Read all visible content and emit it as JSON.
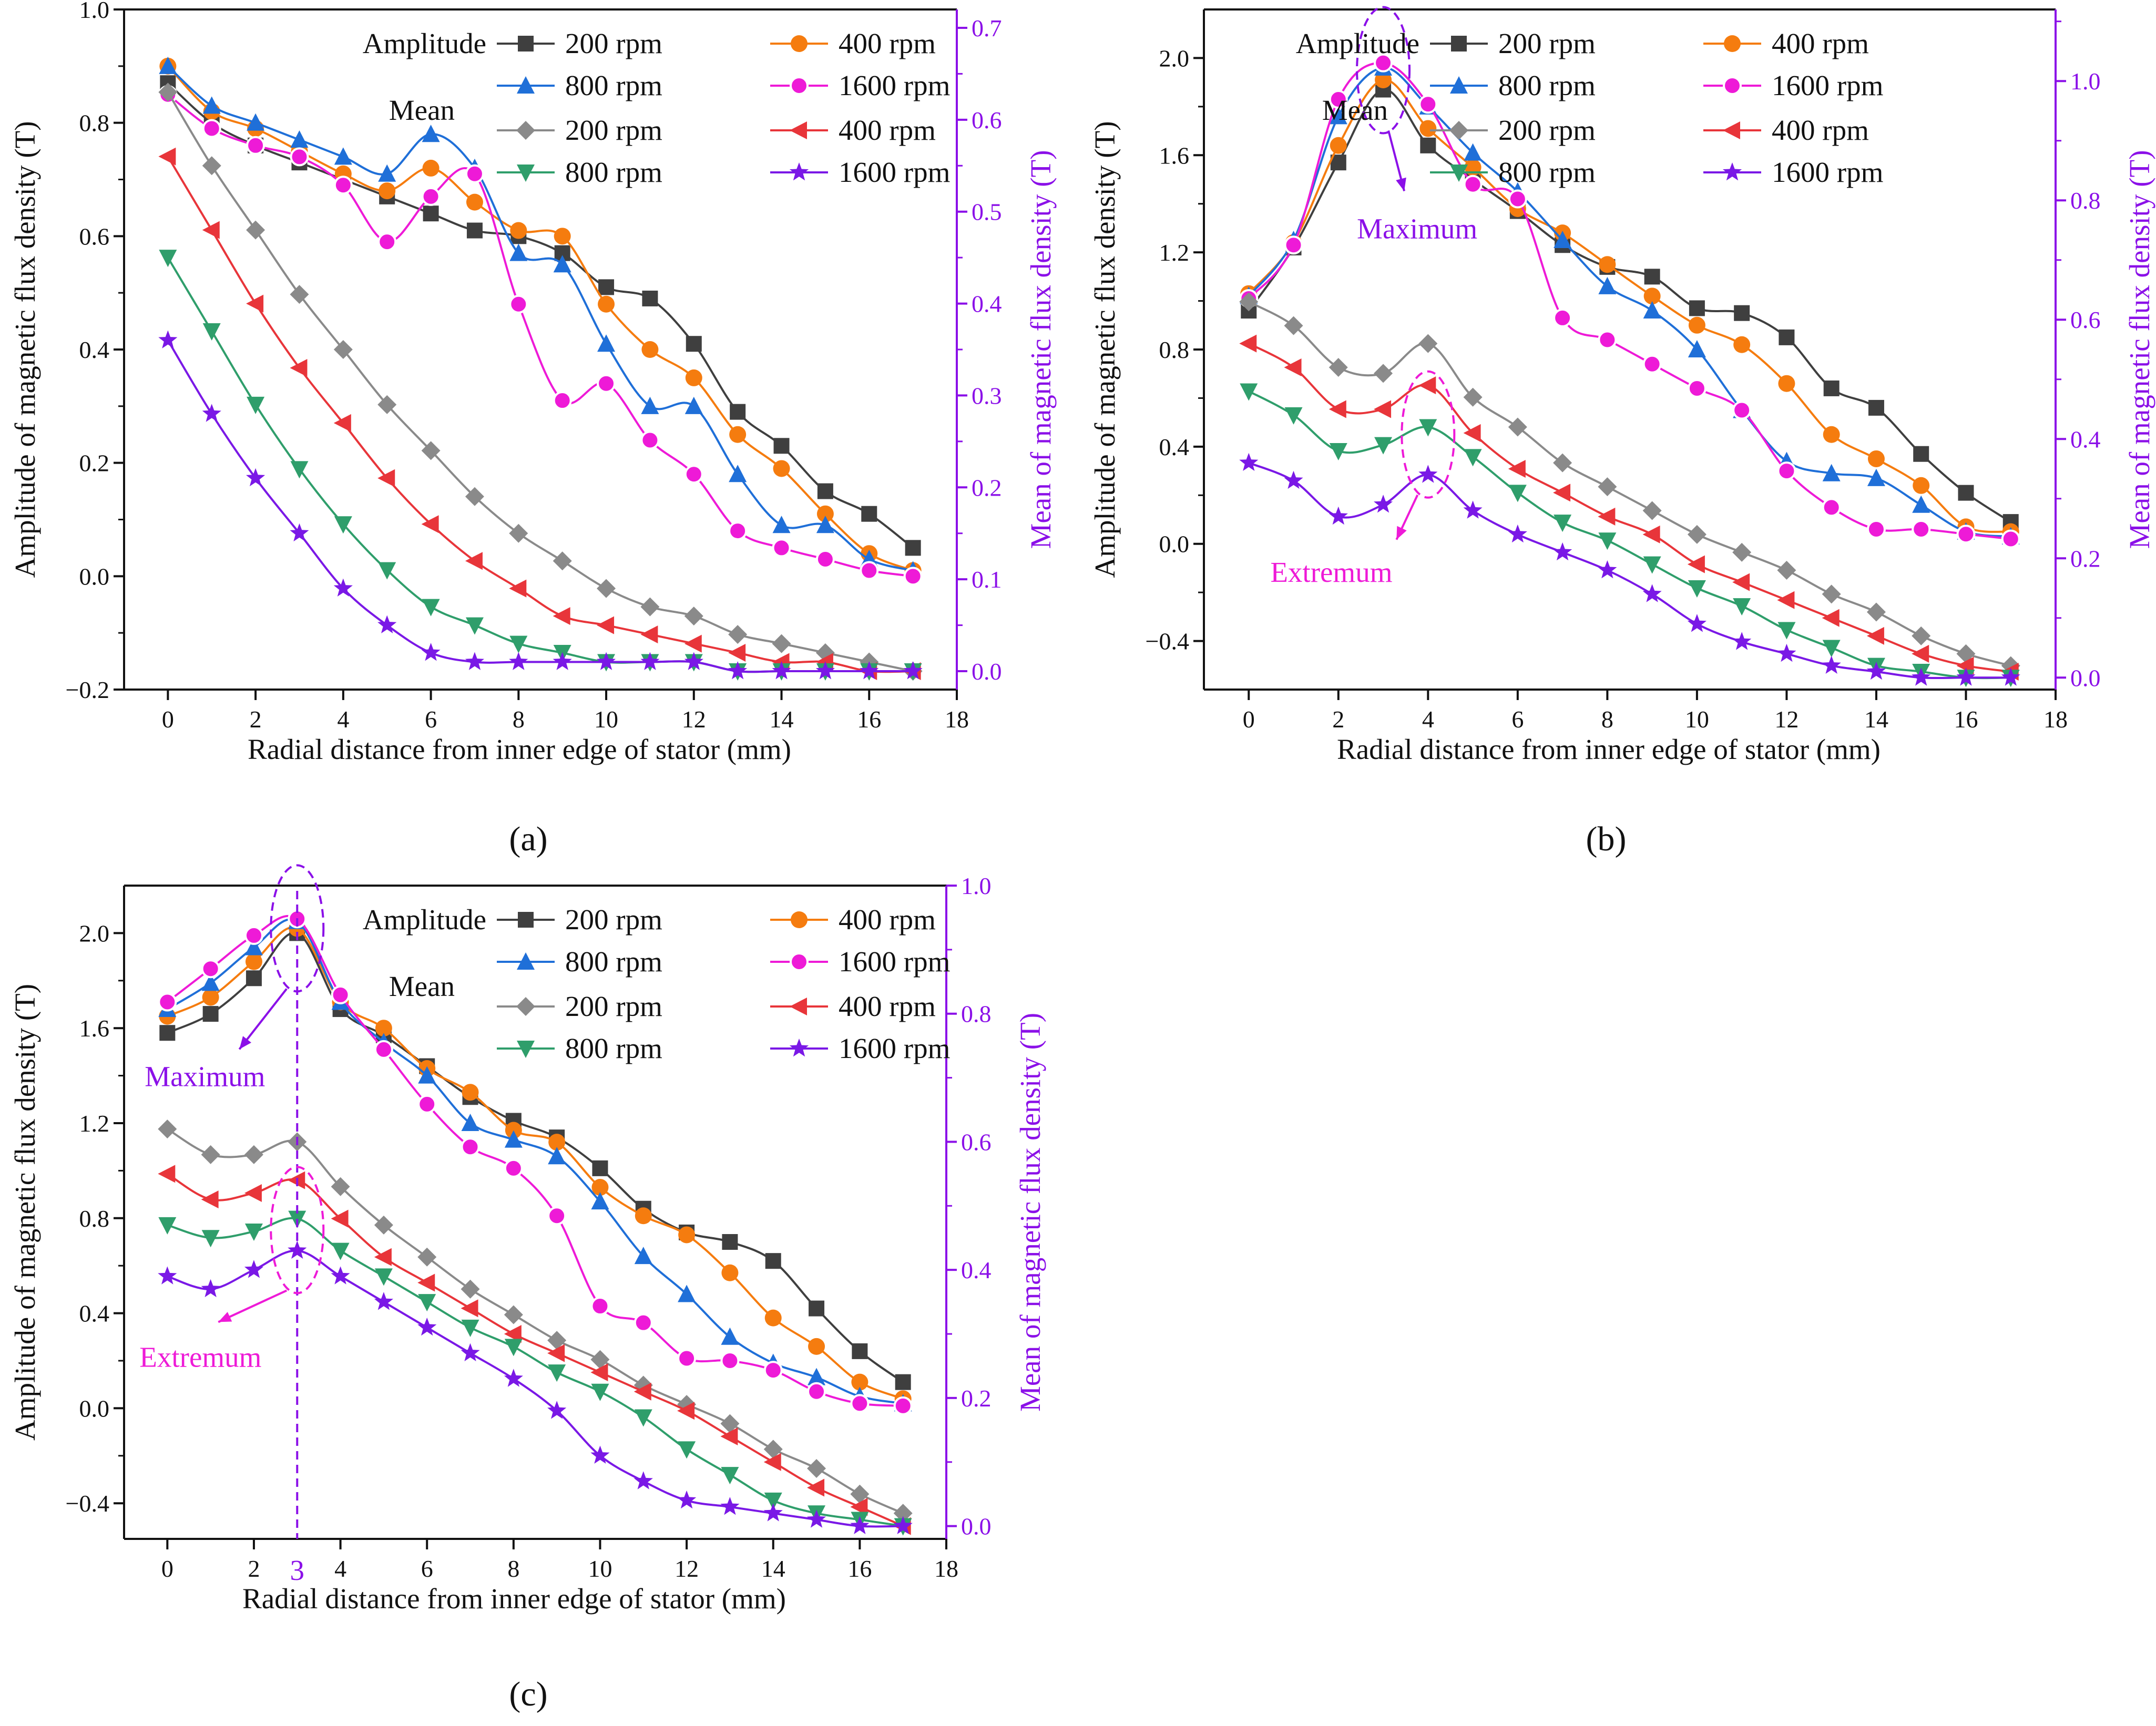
{
  "figure": {
    "panel_labels": [
      "(a)",
      "(b)",
      "(c)"
    ],
    "series_colors": {
      "amp_200": "#3f3f3f",
      "amp_400": "#f57c0f",
      "amp_800": "#1f6fd8",
      "amp_1600": "#ee1ad7",
      "mean_200": "#8a8a8a",
      "mean_400": "#e8353a",
      "mean_800": "#2f9e6b",
      "mean_1600": "#7a18e6"
    },
    "right_axis_color": "#8b10e8",
    "marker_names": [
      "square",
      "circle",
      "triangle-up",
      "sphere",
      "diamond",
      "triangle-left",
      "triangle-down",
      "star"
    ]
  },
  "chart_data": [
    {
      "type": "line",
      "panel": "(a)",
      "xlabel": "Radial distance from inner edge of stator (mm)",
      "ylabel": "Amplitude of magnetic flux density (T)",
      "y2label": "Mean of magnetic flux density (T)",
      "xlim": [
        -1,
        18
      ],
      "xticks": [
        0,
        2,
        4,
        6,
        8,
        10,
        12,
        14,
        16,
        18
      ],
      "ylim": [
        -0.2,
        1.0
      ],
      "yticks": [
        -0.2,
        0.0,
        0.2,
        0.4,
        0.6,
        0.8,
        1.0
      ],
      "y2lim": [
        -0.02,
        0.72
      ],
      "y2ticks": [
        0.0,
        0.1,
        0.2,
        0.3,
        0.4,
        0.5,
        0.6,
        0.7
      ],
      "legend_group_amplitude": "Amplitude",
      "legend_group_mean": "Mean",
      "x": [
        0,
        1,
        2,
        3,
        4,
        5,
        6,
        7,
        8,
        9,
        10,
        11,
        12,
        13,
        14,
        15,
        16,
        17
      ],
      "series": [
        {
          "name": "200 rpm",
          "group": "Amplitude",
          "axis": "left",
          "values": [
            0.87,
            0.8,
            0.76,
            0.73,
            0.7,
            0.67,
            0.64,
            0.61,
            0.6,
            0.57,
            0.51,
            0.49,
            0.41,
            0.29,
            0.23,
            0.15,
            0.11,
            0.05
          ]
        },
        {
          "name": "400 rpm",
          "group": "Amplitude",
          "axis": "left",
          "values": [
            0.9,
            0.82,
            0.79,
            0.75,
            0.71,
            0.68,
            0.72,
            0.66,
            0.61,
            0.6,
            0.48,
            0.4,
            0.35,
            0.25,
            0.19,
            0.11,
            0.04,
            0.01
          ]
        },
        {
          "name": "800 rpm",
          "group": "Amplitude",
          "axis": "left",
          "values": [
            0.9,
            0.83,
            0.8,
            0.77,
            0.74,
            0.71,
            0.78,
            0.72,
            0.57,
            0.55,
            0.41,
            0.3,
            0.3,
            0.18,
            0.09,
            0.09,
            0.03,
            0.01
          ]
        },
        {
          "name": "1600 rpm",
          "group": "Amplitude",
          "axis": "left",
          "values": [
            0.85,
            0.79,
            0.76,
            0.74,
            0.69,
            0.59,
            0.67,
            0.71,
            0.48,
            0.31,
            0.34,
            0.24,
            0.18,
            0.08,
            0.05,
            0.03,
            0.01,
            0.0
          ]
        },
        {
          "name": "200 rpm",
          "group": "Mean",
          "axis": "right",
          "values": [
            0.63,
            0.55,
            0.48,
            0.41,
            0.35,
            0.29,
            0.24,
            0.19,
            0.15,
            0.12,
            0.09,
            0.07,
            0.06,
            0.04,
            0.03,
            0.02,
            0.01,
            0.0
          ]
        },
        {
          "name": "400 rpm",
          "group": "Mean",
          "axis": "right",
          "values": [
            0.56,
            0.48,
            0.4,
            0.33,
            0.27,
            0.21,
            0.16,
            0.12,
            0.09,
            0.06,
            0.05,
            0.04,
            0.03,
            0.02,
            0.01,
            0.01,
            0.0,
            0.0
          ]
        },
        {
          "name": "800 rpm",
          "group": "Mean",
          "axis": "right",
          "values": [
            0.45,
            0.37,
            0.29,
            0.22,
            0.16,
            0.11,
            0.07,
            0.05,
            0.03,
            0.02,
            0.01,
            0.01,
            0.01,
            0.0,
            0.0,
            0.0,
            0.0,
            0.0
          ]
        },
        {
          "name": "1600 rpm",
          "group": "Mean",
          "axis": "right",
          "values": [
            0.36,
            0.28,
            0.21,
            0.15,
            0.09,
            0.05,
            0.02,
            0.01,
            0.01,
            0.01,
            0.01,
            0.01,
            0.01,
            0.0,
            0.0,
            0.0,
            0.0,
            0.0
          ]
        }
      ],
      "annotations": []
    },
    {
      "type": "line",
      "panel": "(b)",
      "xlabel": "Radial distance from inner edge of stator (mm)",
      "ylabel": "Amplitude of magnetic flux density (T)",
      "y2label": "Mean of magnetic flux density (T)",
      "xlim": [
        -1,
        18
      ],
      "xticks": [
        0,
        2,
        4,
        6,
        8,
        10,
        12,
        14,
        16,
        18
      ],
      "ylim": [
        -0.6,
        2.2
      ],
      "yticks": [
        -0.4,
        0.0,
        0.4,
        0.8,
        1.2,
        1.6,
        2.0
      ],
      "y2lim": [
        -0.02,
        1.12
      ],
      "y2ticks": [
        0.0,
        0.2,
        0.4,
        0.6,
        0.8,
        1.0
      ],
      "legend_group_amplitude": "Amplitude",
      "legend_group_mean": "Mean",
      "x": [
        0,
        1,
        2,
        3,
        4,
        5,
        6,
        7,
        8,
        9,
        10,
        11,
        12,
        13,
        14,
        15,
        16,
        17
      ],
      "series": [
        {
          "name": "200 rpm",
          "group": "Amplitude",
          "axis": "left",
          "values": [
            0.96,
            1.22,
            1.57,
            1.87,
            1.64,
            1.5,
            1.37,
            1.23,
            1.14,
            1.1,
            0.97,
            0.95,
            0.85,
            0.64,
            0.56,
            0.37,
            0.21,
            0.09
          ]
        },
        {
          "name": "400 rpm",
          "group": "Amplitude",
          "axis": "left",
          "values": [
            1.03,
            1.24,
            1.64,
            1.91,
            1.71,
            1.55,
            1.38,
            1.28,
            1.15,
            1.02,
            0.9,
            0.82,
            0.66,
            0.45,
            0.35,
            0.24,
            0.07,
            0.05
          ]
        },
        {
          "name": "800 rpm",
          "group": "Amplitude",
          "axis": "left",
          "values": [
            1.02,
            1.25,
            1.76,
            1.96,
            1.8,
            1.61,
            1.45,
            1.25,
            1.06,
            0.96,
            0.8,
            0.55,
            0.34,
            0.29,
            0.27,
            0.16,
            0.05,
            0.03
          ]
        },
        {
          "name": "1600 rpm",
          "group": "Amplitude",
          "axis": "left",
          "values": [
            1.01,
            1.23,
            1.83,
            1.98,
            1.81,
            1.48,
            1.42,
            0.93,
            0.84,
            0.74,
            0.64,
            0.55,
            0.3,
            0.15,
            0.06,
            0.06,
            0.04,
            0.02
          ]
        },
        {
          "name": "200 rpm",
          "group": "Mean",
          "axis": "right",
          "values": [
            0.63,
            0.59,
            0.52,
            0.51,
            0.56,
            0.47,
            0.42,
            0.36,
            0.32,
            0.28,
            0.24,
            0.21,
            0.18,
            0.14,
            0.11,
            0.07,
            0.04,
            0.02
          ]
        },
        {
          "name": "400 rpm",
          "group": "Mean",
          "axis": "right",
          "values": [
            0.56,
            0.52,
            0.45,
            0.45,
            0.49,
            0.41,
            0.35,
            0.31,
            0.27,
            0.24,
            0.19,
            0.16,
            0.13,
            0.1,
            0.07,
            0.04,
            0.02,
            0.01
          ]
        },
        {
          "name": "800 rpm",
          "group": "Mean",
          "axis": "right",
          "values": [
            0.48,
            0.44,
            0.38,
            0.39,
            0.42,
            0.37,
            0.31,
            0.26,
            0.23,
            0.19,
            0.15,
            0.12,
            0.08,
            0.05,
            0.02,
            0.01,
            0.0,
            0.0
          ]
        },
        {
          "name": "1600 rpm",
          "group": "Mean",
          "axis": "right",
          "values": [
            0.36,
            0.33,
            0.27,
            0.29,
            0.34,
            0.28,
            0.24,
            0.21,
            0.18,
            0.14,
            0.09,
            0.06,
            0.04,
            0.02,
            0.01,
            0.0,
            0.0,
            0.0
          ]
        }
      ],
      "annotations": [
        {
          "text": "Maximum",
          "color": "#8b10e8",
          "target_x": 3,
          "target_y": 1.95,
          "axis": "left"
        },
        {
          "text": "Extremum",
          "color": "#ee1ad7",
          "target_x": 4,
          "target_y": 0.45,
          "axis": "left"
        }
      ]
    },
    {
      "type": "line",
      "panel": "(c)",
      "xlabel": "Radial distance from inner edge of stator (mm)",
      "ylabel": "Amplitude of magnetic flux density (T)",
      "y2label": "Mean of magnetic flux density (T)",
      "xlim": [
        -1,
        18
      ],
      "xticks": [
        0,
        2,
        4,
        6,
        8,
        10,
        12,
        14,
        16,
        18
      ],
      "ylim": [
        -0.55,
        2.2
      ],
      "yticks": [
        -0.4,
        0.0,
        0.4,
        0.8,
        1.2,
        1.6,
        2.0
      ],
      "y2lim": [
        -0.02,
        1.0
      ],
      "y2ticks": [
        0.0,
        0.2,
        0.4,
        0.6,
        0.8,
        1.0
      ],
      "legend_group_amplitude": "Amplitude",
      "legend_group_mean": "Mean",
      "marked_x_label": "3",
      "x": [
        0,
        1,
        2,
        3,
        4,
        5,
        6,
        7,
        8,
        9,
        10,
        11,
        12,
        13,
        14,
        15,
        16,
        17
      ],
      "series": [
        {
          "name": "200 rpm",
          "group": "Amplitude",
          "axis": "left",
          "values": [
            1.58,
            1.66,
            1.81,
            2.0,
            1.68,
            1.57,
            1.44,
            1.31,
            1.21,
            1.14,
            1.01,
            0.84,
            0.74,
            0.7,
            0.62,
            0.42,
            0.24,
            0.11
          ]
        },
        {
          "name": "400 rpm",
          "group": "Amplitude",
          "axis": "left",
          "values": [
            1.65,
            1.73,
            1.88,
            2.02,
            1.71,
            1.6,
            1.43,
            1.33,
            1.17,
            1.12,
            0.93,
            0.81,
            0.73,
            0.57,
            0.38,
            0.26,
            0.11,
            0.04
          ]
        },
        {
          "name": "800 rpm",
          "group": "Amplitude",
          "axis": "left",
          "values": [
            1.68,
            1.79,
            1.94,
            2.05,
            1.71,
            1.54,
            1.4,
            1.2,
            1.13,
            1.06,
            0.87,
            0.64,
            0.48,
            0.3,
            0.19,
            0.13,
            0.05,
            0.02
          ]
        },
        {
          "name": "1600 rpm",
          "group": "Amplitude",
          "axis": "left",
          "values": [
            1.71,
            1.85,
            1.99,
            2.06,
            1.74,
            1.51,
            1.28,
            1.1,
            1.01,
            0.81,
            0.43,
            0.36,
            0.21,
            0.2,
            0.16,
            0.07,
            0.02,
            0.01
          ]
        },
        {
          "name": "200 rpm",
          "group": "Mean",
          "axis": "right",
          "values": [
            0.62,
            0.58,
            0.58,
            0.6,
            0.53,
            0.47,
            0.42,
            0.37,
            0.33,
            0.29,
            0.26,
            0.22,
            0.19,
            0.16,
            0.12,
            0.09,
            0.05,
            0.02
          ]
        },
        {
          "name": "400 rpm",
          "group": "Mean",
          "axis": "right",
          "values": [
            0.55,
            0.51,
            0.52,
            0.54,
            0.48,
            0.42,
            0.38,
            0.34,
            0.3,
            0.27,
            0.24,
            0.21,
            0.18,
            0.14,
            0.1,
            0.06,
            0.03,
            0.0
          ]
        },
        {
          "name": "800 rpm",
          "group": "Mean",
          "axis": "right",
          "values": [
            0.47,
            0.45,
            0.46,
            0.48,
            0.43,
            0.39,
            0.35,
            0.31,
            0.28,
            0.24,
            0.21,
            0.17,
            0.12,
            0.08,
            0.04,
            0.02,
            0.01,
            0.0
          ]
        },
        {
          "name": "1600 rpm",
          "group": "Mean",
          "axis": "right",
          "values": [
            0.39,
            0.37,
            0.4,
            0.43,
            0.39,
            0.35,
            0.31,
            0.27,
            0.23,
            0.18,
            0.11,
            0.07,
            0.04,
            0.03,
            0.02,
            0.01,
            0.0,
            0.0
          ]
        }
      ],
      "annotations": [
        {
          "text": "Maximum",
          "color": "#8b10e8",
          "target_x": 3,
          "target_y": 2.02,
          "axis": "left"
        },
        {
          "text": "Extremum",
          "color": "#ee1ad7",
          "target_x": 3,
          "target_y": 0.75,
          "axis": "left"
        }
      ]
    }
  ]
}
